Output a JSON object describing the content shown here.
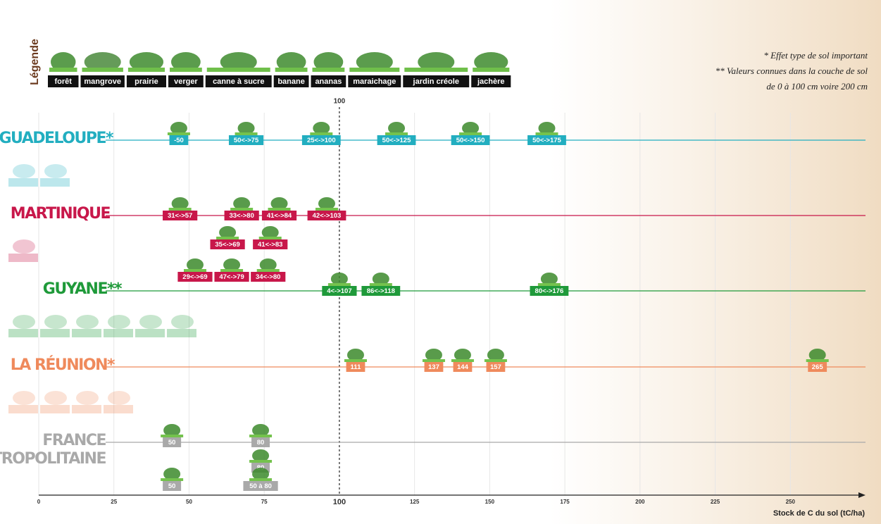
{
  "chart_data": {
    "type": "range-markers",
    "legend_title": "Légende",
    "legend": [
      "forêt",
      "mangrove",
      "prairie",
      "verger",
      "canne à sucre",
      "banane",
      "ananas",
      "maraichage",
      "jardin créole",
      "jachère"
    ],
    "notes": [
      "* Effet type de sol important",
      "** Valeurs connues dans la couche de sol",
      "de 0 à 100 cm voire 200 cm"
    ],
    "xlabel": "Stock de C du sol (tC/ha)",
    "xlim": [
      0,
      275
    ],
    "xticks": [
      0,
      25,
      50,
      75,
      100,
      125,
      150,
      175,
      200,
      225,
      250
    ],
    "reference_line": 100,
    "regions": [
      {
        "name": "GUADELOUPE*",
        "color": "#22aec0",
        "markers": [
          {
            "label": "-50",
            "x": 46.6
          },
          {
            "label": "50<->75",
            "x": 69
          },
          {
            "label": "25<->100",
            "x": 94
          },
          {
            "label": "50<->125",
            "x": 119
          },
          {
            "label": "50<->150",
            "x": 143.6
          },
          {
            "label": "50<->175",
            "x": 169
          }
        ],
        "extra_rows": []
      },
      {
        "name": "MARTINIQUE",
        "color": "#c8174a",
        "markers": [
          {
            "label": "31<->57",
            "x": 47
          },
          {
            "label": "33<->80",
            "x": 67.5
          },
          {
            "label": "41<->84",
            "x": 80
          },
          {
            "label": "42<->103",
            "x": 95.8
          }
        ],
        "extra_rows": [
          [
            {
              "label": "35<->69",
              "x": 62.8
            },
            {
              "label": "41<->83",
              "x": 77
            }
          ],
          [
            {
              "label": "29<->69",
              "x": 52
            },
            {
              "label": "47<->79",
              "x": 64.2
            },
            {
              "label": "34<->80",
              "x": 76.3
            }
          ]
        ]
      },
      {
        "name": "GUYANE**",
        "color": "#1f9a3a",
        "markers": [
          {
            "label": "4<->107",
            "x": 100
          },
          {
            "label": "86<->118",
            "x": 113.8
          },
          {
            "label": "80<->176",
            "x": 169.8
          }
        ],
        "extra_rows": []
      },
      {
        "name": "LA RÉUNION*",
        "color": "#ef8a5c",
        "markers": [
          {
            "label": "111",
            "x": 105.4
          },
          {
            "label": "137",
            "x": 131.4
          },
          {
            "label": "144",
            "x": 141
          },
          {
            "label": "157",
            "x": 152
          },
          {
            "label": "265",
            "x": 259
          }
        ],
        "extra_rows": []
      },
      {
        "name": [
          "FRANCE",
          "MÉTROPOLITAINE"
        ],
        "color": "#a9a9a9",
        "markers": [
          {
            "label": "50",
            "x": 44.3
          },
          {
            "label": "80",
            "x": 73.8
          }
        ],
        "extra_rows": [
          [
            {
              "label": "80",
              "x": 73.8
            }
          ],
          [
            {
              "label": "50",
              "x": 44.3
            },
            {
              "label": "50 à 80",
              "x": 73.8
            }
          ]
        ]
      }
    ]
  }
}
